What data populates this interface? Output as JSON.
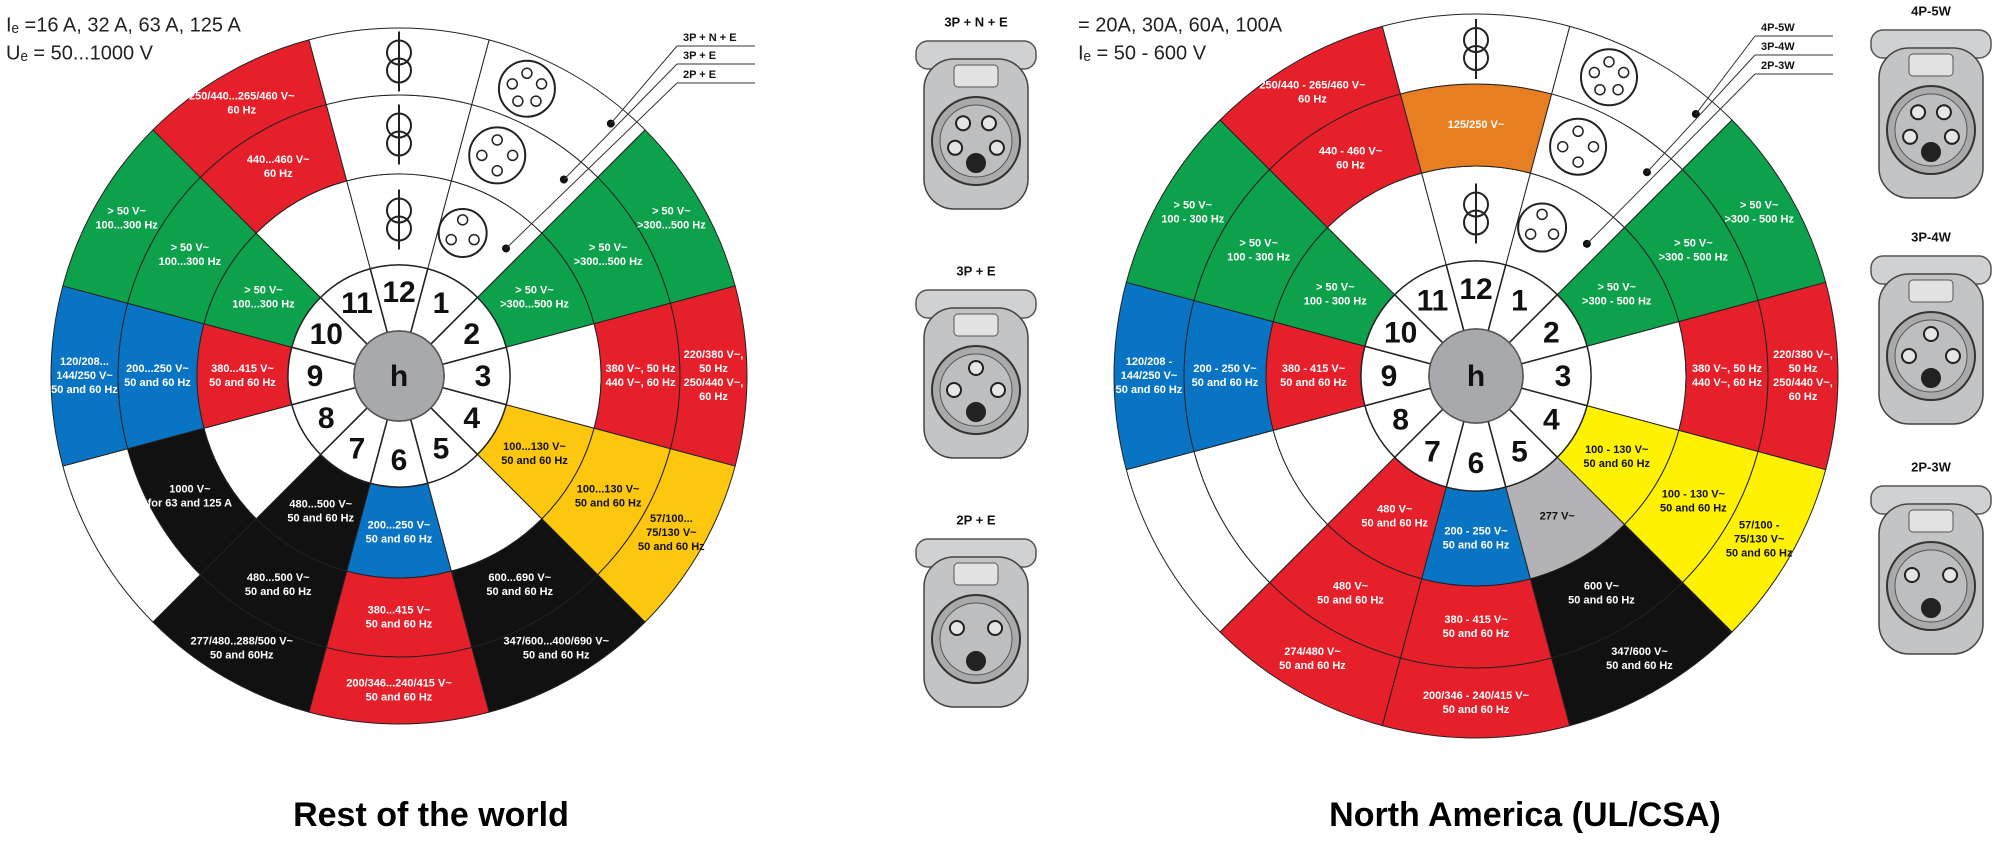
{
  "wheels": [
    {
      "header": [
        "Iₑ =16 A, 32 A, 63 A, 125 A",
        "Uₑ = 50...1000 V"
      ],
      "socket_labels": [
        "3P + N + E",
        "3P + E",
        "2P + E"
      ],
      "hub": "h",
      "numbers": [
        "1",
        "2",
        "3",
        "4",
        "5",
        "6",
        "7",
        "8",
        "9",
        "10",
        "11",
        "12"
      ],
      "rings": [
        [
          {
            "color": "#ffffff"
          },
          {
            "color": "#0ea14b",
            "lines": [
              "> 50 V~",
              ">300...500 Hz"
            ]
          },
          {
            "color": "#ffffff"
          },
          {
            "color": "#fdc60f",
            "lines": [
              "100...130 V~",
              "50 and 60 Hz"
            ]
          },
          {
            "color": "#ffffff"
          },
          {
            "color": "#0a74c4",
            "lines": [
              "200...250 V~",
              "50 and 60 Hz"
            ]
          },
          {
            "color": "#111111",
            "lines": [
              "480...500 V~",
              "50 and 60 Hz"
            ]
          },
          {
            "color": "#ffffff"
          },
          {
            "color": "#e5202a",
            "lines": [
              "380...415 V~",
              "50 and 60 Hz"
            ]
          },
          {
            "color": "#0ea14b",
            "lines": [
              "> 50 V~",
              "100...300 Hz"
            ]
          },
          {
            "color": "#ffffff"
          },
          {
            "color": "#ffffff"
          }
        ],
        [
          {
            "color": "#ffffff"
          },
          {
            "color": "#0ea14b",
            "lines": [
              "> 50 V~",
              ">300...500 Hz"
            ]
          },
          {
            "color": "#e5202a",
            "lines": [
              "380 V~, 50 Hz",
              "440 V~, 60 Hz"
            ]
          },
          {
            "color": "#fdc60f",
            "lines": [
              "100...130 V~",
              "50 and 60 Hz"
            ]
          },
          {
            "color": "#111111",
            "lines": [
              "600...690 V~",
              "50 and 60 Hz"
            ]
          },
          {
            "color": "#e5202a",
            "lines": [
              "380...415 V~",
              "50 and 60 Hz"
            ]
          },
          {
            "color": "#111111",
            "lines": [
              "480...500 V~",
              "50 and 60 Hz"
            ]
          },
          {
            "color": "#111111",
            "lines": [
              "1000 V~",
              "for 63 and 125 A"
            ]
          },
          {
            "color": "#0a74c4",
            "lines": [
              "200...250 V~",
              "50 and 60 Hz"
            ]
          },
          {
            "color": "#0ea14b",
            "lines": [
              "> 50 V~",
              "100...300 Hz"
            ]
          },
          {
            "color": "#e5202a",
            "lines": [
              "440...460 V~",
              "60 Hz"
            ]
          },
          {
            "color": "#ffffff"
          }
        ],
        [
          {
            "color": "#ffffff"
          },
          {
            "color": "#0ea14b",
            "lines": [
              "> 50 V~",
              ">300...500 Hz"
            ]
          },
          {
            "color": "#e5202a",
            "lines": [
              "220/380 V~,",
              "50 Hz",
              "250/440 V~,",
              "60 Hz"
            ]
          },
          {
            "color": "#fdc60f",
            "lines": [
              "57/100...",
              "75/130 V~",
              "50 and 60 Hz"
            ]
          },
          {
            "color": "#111111",
            "lines": [
              "347/600...400/690 V~",
              "50 and 60 Hz"
            ]
          },
          {
            "color": "#e5202a",
            "lines": [
              "200/346...240/415 V~",
              "50 and 60 Hz"
            ]
          },
          {
            "color": "#111111",
            "lines": [
              "277/480..288/500 V~",
              "50 and 60Hz"
            ]
          },
          {
            "color": "#ffffff"
          },
          {
            "color": "#0a74c4",
            "lines": [
              "120/208...",
              "144/250 V~",
              "50 and 60 Hz"
            ]
          },
          {
            "color": "#0ea14b",
            "lines": [
              "> 50 V~",
              "100...300 Hz"
            ]
          },
          {
            "color": "#e5202a",
            "lines": [
              "250/440...265/460 V~",
              "60 Hz"
            ]
          },
          {
            "color": "#ffffff"
          }
        ]
      ],
      "caption": "Rest of the world"
    },
    {
      "header": [
        "= 20A, 30A, 60A, 100A",
        "Iₑ = 50 - 600 V"
      ],
      "socket_labels": [
        "4P-5W",
        "3P-4W",
        "2P-3W"
      ],
      "hub": "h",
      "numbers": [
        "1",
        "2",
        "3",
        "4",
        "5",
        "6",
        "7",
        "8",
        "9",
        "10",
        "11",
        "12"
      ],
      "rings": [
        [
          {
            "color": "#ffffff"
          },
          {
            "color": "#0ea14b",
            "lines": [
              "> 50 V~",
              ">300 - 500 Hz"
            ]
          },
          {
            "color": "#ffffff"
          },
          {
            "color": "#fff200",
            "lines": [
              "100 - 130 V~",
              "50 and 60 Hz"
            ]
          },
          {
            "color": "#b3b3b5",
            "lines": [
              "277 V~"
            ]
          },
          {
            "color": "#0a74c4",
            "lines": [
              "200 - 250 V~",
              "50 and 60 Hz"
            ]
          },
          {
            "color": "#e5202a",
            "lines": [
              "480 V~",
              "50 and 60 Hz"
            ]
          },
          {
            "color": "#ffffff"
          },
          {
            "color": "#e5202a",
            "lines": [
              "380 - 415 V~",
              "50 and 60 Hz"
            ]
          },
          {
            "color": "#0ea14b",
            "lines": [
              "> 50 V~",
              "100 - 300 Hz"
            ]
          },
          {
            "color": "#ffffff"
          },
          {
            "color": "#ffffff"
          }
        ],
        [
          {
            "color": "#ffffff"
          },
          {
            "color": "#0ea14b",
            "lines": [
              "> 50 V~",
              ">300 - 500 Hz"
            ]
          },
          {
            "color": "#e5202a",
            "lines": [
              "380 V~, 50 Hz",
              "440 V~, 60 Hz"
            ]
          },
          {
            "color": "#fff200",
            "lines": [
              "100 - 130 V~",
              "50 and 60 Hz"
            ]
          },
          {
            "color": "#111111",
            "lines": [
              "600 V~",
              "50 and 60 Hz"
            ]
          },
          {
            "color": "#e5202a",
            "lines": [
              "380 - 415 V~",
              "50 and 60 Hz"
            ]
          },
          {
            "color": "#e5202a",
            "lines": [
              "480 V~",
              "50 and 60 Hz"
            ]
          },
          {
            "color": "#ffffff"
          },
          {
            "color": "#0a74c4",
            "lines": [
              "200 - 250 V~",
              "50 and 60 Hz"
            ]
          },
          {
            "color": "#0ea14b",
            "lines": [
              "> 50 V~",
              "100 - 300 Hz"
            ]
          },
          {
            "color": "#e5202a",
            "lines": [
              "440 - 460 V~",
              "60 Hz"
            ]
          },
          {
            "color": "#e87e22",
            "lines": [
              "125/250 V~"
            ]
          }
        ],
        [
          {
            "color": "#ffffff"
          },
          {
            "color": "#0ea14b",
            "lines": [
              "> 50 V~",
              ">300 - 500 Hz"
            ]
          },
          {
            "color": "#e5202a",
            "lines": [
              "220/380 V~,",
              "50 Hz",
              "250/440 V~,",
              "60 Hz"
            ]
          },
          {
            "color": "#fff200",
            "lines": [
              "57/100 -",
              "75/130 V~",
              "50 and 60 Hz"
            ]
          },
          {
            "color": "#111111",
            "lines": [
              "347/600 V~",
              "50 and 60 Hz"
            ]
          },
          {
            "color": "#e5202a",
            "lines": [
              "200/346 - 240/415 V~",
              "50 and 60 Hz"
            ]
          },
          {
            "color": "#e5202a",
            "lines": [
              "274/480 V~",
              "50 and 60 Hz"
            ]
          },
          {
            "color": "#ffffff"
          },
          {
            "color": "#0a74c4",
            "lines": [
              "120/208 -",
              "144/250 V~",
              "50 and 60 Hz"
            ]
          },
          {
            "color": "#0ea14b",
            "lines": [
              "> 50 V~",
              "100 - 300 Hz"
            ]
          },
          {
            "color": "#e5202a",
            "lines": [
              "250/440 - 265/460 V~",
              "60 Hz"
            ]
          },
          {
            "color": "#ffffff"
          }
        ]
      ],
      "caption": "North America (UL/CSA)"
    }
  ],
  "side_panels": [
    {
      "titles": [
        "3P + N + E",
        "3P + E",
        "2P + E"
      ]
    },
    {
      "titles": [
        "4P-5W",
        "3P-4W",
        "2P-3W"
      ]
    }
  ]
}
